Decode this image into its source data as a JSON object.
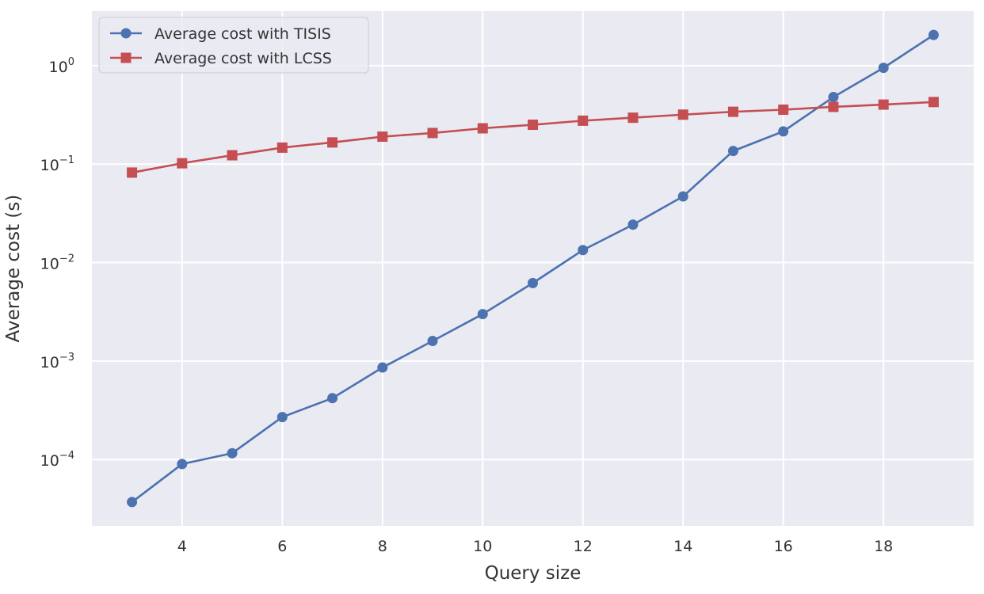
{
  "chart_data": {
    "type": "line",
    "title": "",
    "xlabel": "Query size",
    "ylabel": "Average cost (s)",
    "yscale": "log",
    "grid": true,
    "legend_position": "top-left",
    "x": [
      3,
      4,
      5,
      6,
      7,
      8,
      9,
      10,
      11,
      12,
      13,
      14,
      15,
      16,
      17,
      18,
      19
    ],
    "xlim": [
      2.2,
      19.8
    ],
    "ylim": [
      2.12e-05,
      3.58
    ],
    "x_ticks": [
      4,
      6,
      8,
      10,
      12,
      14,
      16,
      18
    ],
    "x_tick_labels": [
      "4",
      "6",
      "8",
      "10",
      "12",
      "14",
      "16",
      "18"
    ],
    "y_ticks": [
      0.0001,
      0.001,
      0.01,
      0.1,
      1
    ],
    "y_tick_labels": [
      {
        "base": "10",
        "exp": "−4"
      },
      {
        "base": "10",
        "exp": "−3"
      },
      {
        "base": "10",
        "exp": "−2"
      },
      {
        "base": "10",
        "exp": "−1"
      },
      {
        "base": "10",
        "exp": "0"
      }
    ],
    "series": [
      {
        "name": "Average cost with TISIS",
        "color": "#4c72b0",
        "marker": "circle",
        "values": [
          3.7e-05,
          9e-05,
          0.000116,
          0.00027,
          0.00042,
          0.00086,
          0.0016,
          0.003,
          0.0062,
          0.0134,
          0.0243,
          0.047,
          0.136,
          0.215,
          0.48,
          0.95,
          2.05
        ]
      },
      {
        "name": "Average cost with LCSS",
        "color": "#c44e52",
        "marker": "square",
        "values": [
          0.082,
          0.102,
          0.123,
          0.147,
          0.166,
          0.19,
          0.207,
          0.231,
          0.251,
          0.276,
          0.296,
          0.318,
          0.34,
          0.357,
          0.381,
          0.402,
          0.427
        ]
      }
    ]
  }
}
